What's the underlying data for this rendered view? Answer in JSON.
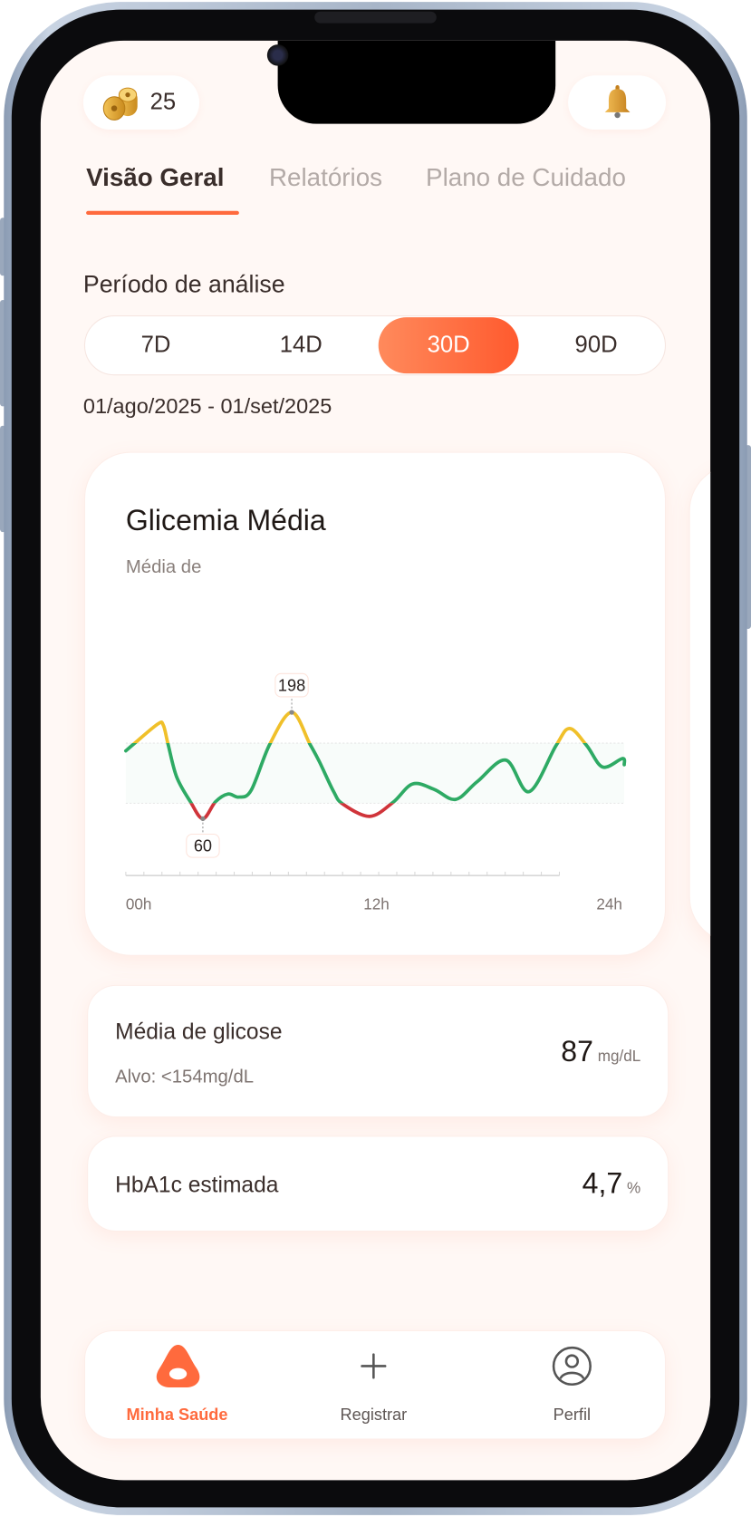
{
  "header": {
    "coins_count": "25",
    "coins_icon": "coins-icon",
    "bell_icon": "bell-icon"
  },
  "tabs": [
    {
      "label": "Visão Geral",
      "active": true
    },
    {
      "label": "Relatórios",
      "active": false
    },
    {
      "label": "Plano de Cuidado",
      "active": false
    }
  ],
  "period": {
    "label": "Período de análise",
    "options": [
      "7D",
      "14D",
      "30D",
      "90D"
    ],
    "selected": "30D",
    "date_range": "01/ago/2025 - 01/set/2025"
  },
  "chart_card": {
    "title": "Glicemia Média",
    "subtitle": "Média de"
  },
  "chart_data": {
    "type": "line",
    "x_unit": "hour",
    "xlim": [
      0,
      24
    ],
    "ylim": [
      0,
      300
    ],
    "x_tick_labels": [
      "00h",
      "12h",
      "24h"
    ],
    "target_range": [
      80,
      158
    ],
    "colors": {
      "in_range": "#2eaa64",
      "high": "#f0c02a",
      "low": "#d0343a"
    },
    "points": [
      [
        0,
        148
      ],
      [
        0.43,
        158
      ],
      [
        1.55,
        183
      ],
      [
        1.81,
        181
      ],
      [
        2.04,
        156
      ],
      [
        2.45,
        114
      ],
      [
        3.11,
        82
      ],
      [
        3.71,
        60
      ],
      [
        4.32,
        82
      ],
      [
        4.92,
        92
      ],
      [
        5.44,
        88
      ],
      [
        6.04,
        97
      ],
      [
        6.94,
        157
      ],
      [
        7.99,
        198
      ],
      [
        8.86,
        157
      ],
      [
        9.32,
        134
      ],
      [
        10.01,
        95
      ],
      [
        10.45,
        79
      ],
      [
        11.74,
        63
      ],
      [
        12.86,
        81
      ],
      [
        13.81,
        105
      ],
      [
        14.85,
        98
      ],
      [
        15.88,
        85
      ],
      [
        16.92,
        108
      ],
      [
        18.3,
        136
      ],
      [
        19.42,
        95
      ],
      [
        20.72,
        155
      ],
      [
        21.37,
        177
      ],
      [
        22.19,
        155
      ],
      [
        22.96,
        127
      ],
      [
        23.91,
        138
      ],
      [
        24,
        130
      ]
    ],
    "annotations": [
      {
        "x": 7.99,
        "y": 198,
        "label": "198"
      },
      {
        "x": 3.71,
        "y": 60,
        "label": "60"
      }
    ]
  },
  "stats": [
    {
      "title": "Média de glicose",
      "subtitle": "Alvo: <154mg/dL",
      "value": "87",
      "unit": "mg/dL"
    },
    {
      "title": "HbA1c estimada",
      "value": "4,7",
      "unit": "%"
    }
  ],
  "nav": [
    {
      "label": "Minha Saúde",
      "icon": "health-logo-icon",
      "active": true
    },
    {
      "label": "Registrar",
      "icon": "plus-icon",
      "active": false
    },
    {
      "label": "Perfil",
      "icon": "profile-icon",
      "active": false
    }
  ],
  "colors": {
    "accent": "#ff6a3d",
    "background": "#fff8f5",
    "text": "#3a2e2b",
    "muted": "#b3aaa7"
  }
}
